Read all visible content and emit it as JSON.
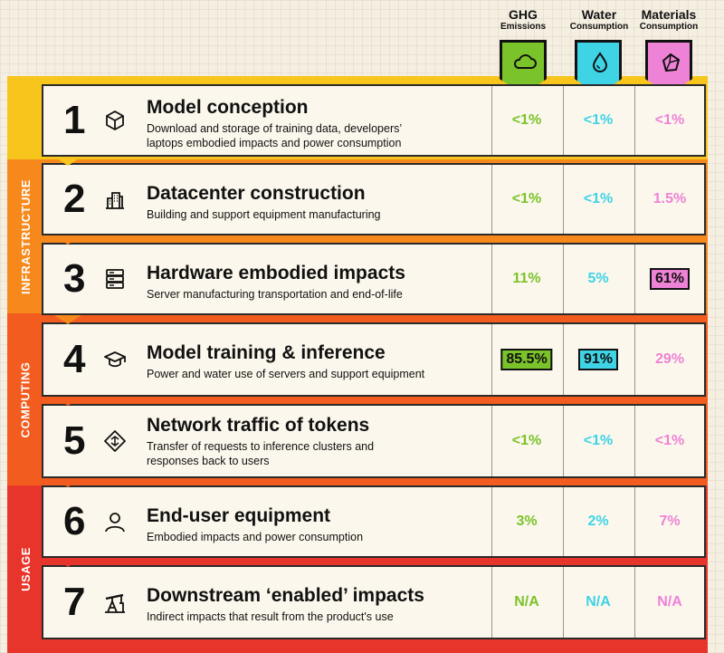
{
  "columns": [
    {
      "title": "GHG",
      "subtitle": "Emissions",
      "color": "#7bc32a",
      "icon": "cloud-icon"
    },
    {
      "title": "Water",
      "subtitle": "Consumption",
      "color": "#3fd3e6",
      "icon": "water-drop-icon"
    },
    {
      "title": "Materials",
      "subtitle": "Consumption",
      "color": "#ee82d6",
      "icon": "materials-icon"
    }
  ],
  "bands": [
    {
      "label": "INFRASTRUCTURE",
      "color": "#f7891c"
    },
    {
      "label": "COMPUTING",
      "color": "#f25c1f"
    },
    {
      "label": "USAGE",
      "color": "#e8352c"
    }
  ],
  "top_band_color": "#f7c51c",
  "rows": [
    {
      "number": "1",
      "icon": "cube-icon",
      "title": "Model conception",
      "desc1": "Download and storage of training data, developers’",
      "desc2": "laptops embodied impacts and power consumption",
      "ghg": "<1%",
      "water": "<1%",
      "materials": "<1%"
    },
    {
      "number": "2",
      "icon": "building-icon",
      "title": "Datacenter construction",
      "desc1": "Building and support equipment manufacturing",
      "desc2": "",
      "ghg": "<1%",
      "water": "<1%",
      "materials": "1.5%"
    },
    {
      "number": "3",
      "icon": "server-icon",
      "title": "Hardware embodied impacts",
      "desc1": "Server manufacturing transportation and end-of-life",
      "desc2": "",
      "ghg": "11%",
      "water": "5%",
      "materials": "61%"
    },
    {
      "number": "4",
      "icon": "graduation-cap-icon",
      "title": "Model training & inference",
      "desc1": "Power and water use of servers and support equipment",
      "desc2": "",
      "ghg": "85.5%",
      "water": "91%",
      "materials": "29%"
    },
    {
      "number": "5",
      "icon": "network-icon",
      "title": "Network traffic of tokens",
      "desc1": "Transfer of requests to inference clusters and",
      "desc2": "responses back to users",
      "ghg": "<1%",
      "water": "<1%",
      "materials": "<1%"
    },
    {
      "number": "6",
      "icon": "user-icon",
      "title": "End-user equipment",
      "desc1": "Embodied impacts and power consumption",
      "desc2": "",
      "ghg": "3%",
      "water": "2%",
      "materials": "7%"
    },
    {
      "number": "7",
      "icon": "oil-pump-icon",
      "title": "Downstream ‘enabled’ impacts",
      "desc1": "Indirect impacts that result from the product's use",
      "desc2": "",
      "ghg": "N/A",
      "water": "N/A",
      "materials": "N/A"
    }
  ],
  "highlights": {
    "ghg": "85.5%",
    "water": "91%",
    "materials": "61%"
  }
}
